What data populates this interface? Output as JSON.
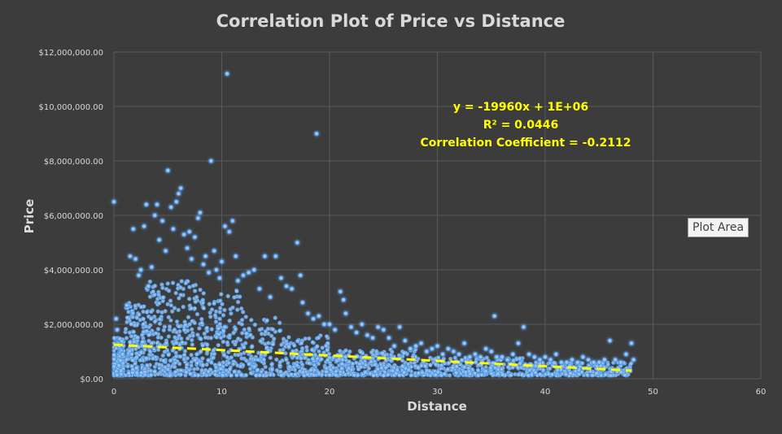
{
  "chart_data": {
    "type": "scatter",
    "title": "Correlation Plot of Price vs Distance",
    "xlabel": "Distance",
    "ylabel": "Price",
    "xlim": [
      0,
      60
    ],
    "ylim": [
      0,
      12000000
    ],
    "x_ticks": [
      {
        "value": 0,
        "label": "0"
      },
      {
        "value": 10,
        "label": "10"
      },
      {
        "value": 20,
        "label": "20"
      },
      {
        "value": 30,
        "label": "30"
      },
      {
        "value": 40,
        "label": "40"
      },
      {
        "value": 50,
        "label": "50"
      },
      {
        "value": 60,
        "label": "60"
      }
    ],
    "y_ticks": [
      {
        "value": 0,
        "label": "$0.00"
      },
      {
        "value": 2000000,
        "label": "$2,000,000.00"
      },
      {
        "value": 4000000,
        "label": "$4,000,000.00"
      },
      {
        "value": 6000000,
        "label": "$6,000,000.00"
      },
      {
        "value": 8000000,
        "label": "$8,000,000.00"
      },
      {
        "value": 10000000,
        "label": "$10,000,000.00"
      },
      {
        "value": 12000000,
        "label": "$12,000,000.00"
      }
    ],
    "grid": true,
    "legend": "none",
    "series": [
      {
        "color": "#9fc5f0",
        "points": [
          [
            0,
            6500000
          ],
          [
            0.2,
            2200000
          ],
          [
            0.3,
            1800000
          ],
          [
            0.5,
            1200000
          ],
          [
            0.8,
            900000
          ],
          [
            1.2,
            2700000
          ],
          [
            1.5,
            4500000
          ],
          [
            1.8,
            5500000
          ],
          [
            2,
            4400000
          ],
          [
            2.3,
            3800000
          ],
          [
            2.5,
            4000000
          ],
          [
            2.8,
            5600000
          ],
          [
            3,
            6400000
          ],
          [
            3.2,
            3400000
          ],
          [
            3.5,
            4100000
          ],
          [
            3.8,
            6000000
          ],
          [
            4,
            6400000
          ],
          [
            4.2,
            5100000
          ],
          [
            4.5,
            5800000
          ],
          [
            4.8,
            4700000
          ],
          [
            5,
            7650000
          ],
          [
            5.3,
            6300000
          ],
          [
            5.5,
            5500000
          ],
          [
            5.8,
            6500000
          ],
          [
            6,
            6800000
          ],
          [
            6.2,
            7000000
          ],
          [
            6.5,
            5300000
          ],
          [
            6.8,
            4800000
          ],
          [
            7,
            5400000
          ],
          [
            7.2,
            4400000
          ],
          [
            7.5,
            5200000
          ],
          [
            7.8,
            5900000
          ],
          [
            8,
            6100000
          ],
          [
            8.3,
            4200000
          ],
          [
            8.5,
            4500000
          ],
          [
            8.8,
            3900000
          ],
          [
            9,
            8000000
          ],
          [
            9.3,
            4700000
          ],
          [
            9.5,
            4000000
          ],
          [
            9.8,
            3700000
          ],
          [
            10,
            4300000
          ],
          [
            10.3,
            5600000
          ],
          [
            10.5,
            11200000
          ],
          [
            10.7,
            5400000
          ],
          [
            11,
            5800000
          ],
          [
            11.3,
            4500000
          ],
          [
            11.5,
            3600000
          ],
          [
            12,
            3800000
          ],
          [
            12.5,
            3900000
          ],
          [
            13,
            4000000
          ],
          [
            13.5,
            3300000
          ],
          [
            14,
            4500000
          ],
          [
            14.5,
            3000000
          ],
          [
            15,
            4500000
          ],
          [
            15.5,
            3700000
          ],
          [
            16,
            3400000
          ],
          [
            16.5,
            3300000
          ],
          [
            17,
            5000000
          ],
          [
            17.3,
            3800000
          ],
          [
            17.5,
            2800000
          ],
          [
            18,
            2400000
          ],
          [
            18.5,
            2200000
          ],
          [
            18.8,
            9000000
          ],
          [
            19,
            2300000
          ],
          [
            19.5,
            2000000
          ],
          [
            20,
            2000000
          ],
          [
            20.5,
            1800000
          ],
          [
            21,
            3200000
          ],
          [
            21.3,
            2900000
          ],
          [
            21.5,
            2400000
          ],
          [
            22,
            1900000
          ],
          [
            22.5,
            1700000
          ],
          [
            23,
            2000000
          ],
          [
            23.5,
            1600000
          ],
          [
            24,
            1500000
          ],
          [
            24.5,
            1900000
          ],
          [
            25,
            1800000
          ],
          [
            25.5,
            1500000
          ],
          [
            26,
            1200000
          ],
          [
            26.5,
            1900000
          ],
          [
            27,
            1400000
          ],
          [
            27.5,
            1100000
          ],
          [
            28,
            1200000
          ],
          [
            28.5,
            1300000
          ],
          [
            29,
            1000000
          ],
          [
            29.5,
            1100000
          ],
          [
            30,
            1200000
          ],
          [
            30.5,
            900000
          ],
          [
            31,
            1100000
          ],
          [
            31.5,
            1000000
          ],
          [
            32,
            900000
          ],
          [
            32.5,
            1300000
          ],
          [
            33,
            800000
          ],
          [
            33.5,
            900000
          ],
          [
            34,
            800000
          ],
          [
            34.5,
            1100000
          ],
          [
            35,
            1000000
          ],
          [
            35.3,
            2300000
          ],
          [
            35.5,
            800000
          ],
          [
            36,
            800000
          ],
          [
            36.5,
            700000
          ],
          [
            37,
            900000
          ],
          [
            37.5,
            1300000
          ],
          [
            38,
            1900000
          ],
          [
            38.5,
            900000
          ],
          [
            39,
            800000
          ],
          [
            39.5,
            700000
          ],
          [
            40,
            800000
          ],
          [
            40.5,
            700000
          ],
          [
            41,
            900000
          ],
          [
            41.5,
            600000
          ],
          [
            42,
            600000
          ],
          [
            42.5,
            700000
          ],
          [
            43,
            600000
          ],
          [
            43.5,
            800000
          ],
          [
            44,
            700000
          ],
          [
            44.5,
            600000
          ],
          [
            45,
            600000
          ],
          [
            45.5,
            700000
          ],
          [
            46,
            1400000
          ],
          [
            46.5,
            700000
          ],
          [
            47,
            600000
          ],
          [
            47.5,
            900000
          ],
          [
            48,
            1300000
          ],
          [
            48.2,
            700000
          ]
        ]
      }
    ],
    "trendline": {
      "x": [
        0,
        48
      ],
      "y": [
        1250000,
        300000
      ],
      "color": "#ffff00",
      "style": "dashed"
    },
    "annotations": {
      "equation": "y = -19960x + 1E+06",
      "r_squared": "R² = 0.0446",
      "correlation": "Correlation Coefficient = -0.2112"
    }
  },
  "tooltip": "Plot Area",
  "colors": {
    "background": "#3c3c3c",
    "grid": "#5a5a5a",
    "text": "#d9d9d9",
    "annotation": "#ffff00",
    "marker": "#9fc5f0",
    "marker_glow": "#3f8fe0"
  }
}
